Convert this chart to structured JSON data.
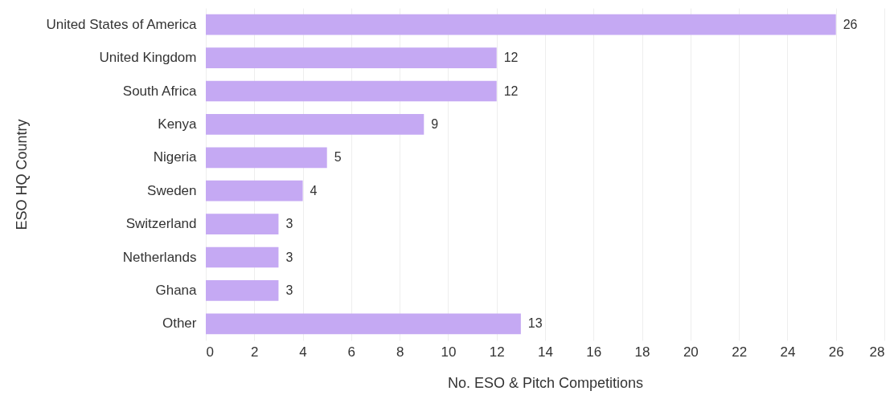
{
  "chart_data": {
    "type": "bar",
    "orientation": "horizontal",
    "xlabel": "No. ESO & Pitch Competitions",
    "ylabel": "ESO HQ Country",
    "categories": [
      "United States of America",
      "United Kingdom",
      "South Africa",
      "Kenya",
      "Nigeria",
      "Sweden",
      "Switzerland",
      "Netherlands",
      "Ghana",
      "Other"
    ],
    "values": [
      26,
      12,
      12,
      9,
      5,
      4,
      3,
      3,
      3,
      13
    ],
    "color": "#c5a9f3",
    "xlim": [
      0,
      28
    ],
    "xticks": [
      0,
      2,
      4,
      6,
      8,
      10,
      12,
      14,
      16,
      18,
      20,
      22,
      24,
      26,
      28
    ],
    "grid": "x",
    "data_labels": true
  }
}
